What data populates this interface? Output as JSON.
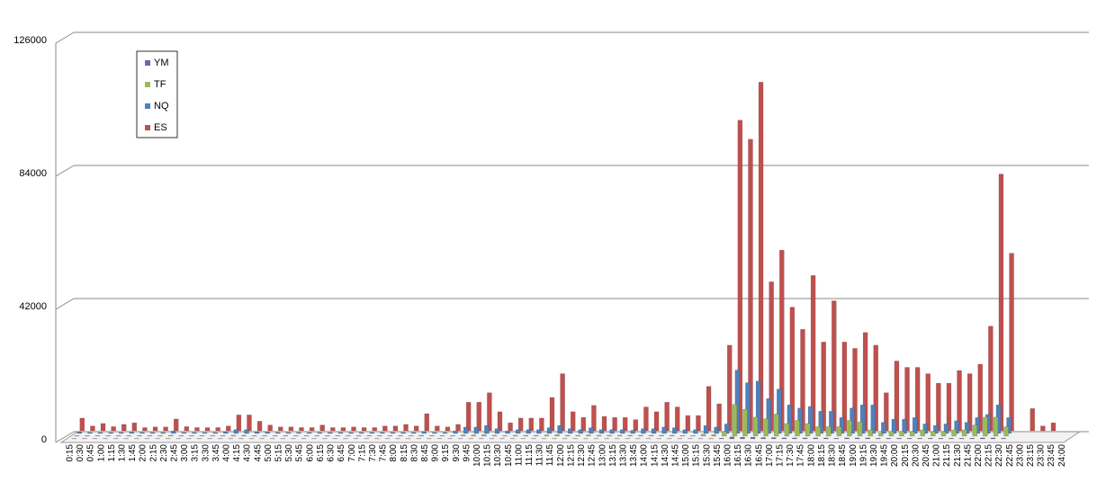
{
  "chart_data": {
    "type": "bar",
    "categories": [
      "0:15",
      "0:30",
      "0:45",
      "1:00",
      "1:15",
      "1:30",
      "1:45",
      "2:00",
      "2:15",
      "2:30",
      "2:45",
      "3:00",
      "3:15",
      "3:30",
      "3:45",
      "4:00",
      "4:15",
      "4:30",
      "4:45",
      "5:00",
      "5:15",
      "5:30",
      "5:45",
      "6:00",
      "6:15",
      "6:30",
      "6:45",
      "7:00",
      "7:15",
      "7:30",
      "7:45",
      "8:00",
      "8:15",
      "8:30",
      "8:45",
      "9:00",
      "9:15",
      "9:30",
      "9:45",
      "10:00",
      "10:15",
      "10:30",
      "10:45",
      "11:00",
      "11:15",
      "11:30",
      "11:45",
      "12:00",
      "12:15",
      "12:30",
      "12:45",
      "13:00",
      "13:15",
      "13:30",
      "13:45",
      "14:00",
      "14:15",
      "14:30",
      "14:45",
      "15:00",
      "15:15",
      "15:30",
      "15:45",
      "16:00",
      "16:15",
      "16:30",
      "16:45",
      "17:00",
      "17:15",
      "17:30",
      "17:45",
      "18:00",
      "18:15",
      "18:30",
      "18:45",
      "19:00",
      "19:15",
      "19:30",
      "19:45",
      "20:00",
      "20:15",
      "20:30",
      "20:45",
      "21:00",
      "21:15",
      "21:30",
      "21:45",
      "22:00",
      "22:15",
      "22:30",
      "22:45",
      "23:00",
      "23:15",
      "23:30",
      "23:45",
      "24:00"
    ],
    "series": [
      {
        "name": "YM",
        "color": "#7a5fa8",
        "values": [
          100,
          100,
          100,
          100,
          100,
          100,
          100,
          100,
          100,
          100,
          100,
          100,
          100,
          100,
          100,
          100,
          100,
          100,
          100,
          100,
          100,
          100,
          100,
          100,
          100,
          100,
          100,
          100,
          100,
          100,
          100,
          100,
          100,
          100,
          100,
          100,
          100,
          100,
          100,
          100,
          100,
          100,
          100,
          100,
          100,
          100,
          100,
          100,
          100,
          100,
          100,
          100,
          100,
          100,
          100,
          100,
          100,
          100,
          100,
          100,
          100,
          100,
          200,
          600,
          500,
          500,
          400,
          400,
          300,
          300,
          300,
          300,
          300,
          200,
          300,
          300,
          300,
          200,
          200,
          200,
          200,
          200,
          200,
          200,
          200,
          200,
          200,
          300,
          300,
          200,
          0,
          0,
          0,
          0,
          0,
          0
        ]
      },
      {
        "name": "TF",
        "color": "#9bbb59",
        "values": [
          200,
          200,
          200,
          200,
          200,
          200,
          200,
          200,
          200,
          300,
          200,
          200,
          200,
          200,
          200,
          300,
          300,
          200,
          200,
          200,
          200,
          200,
          200,
          200,
          200,
          200,
          200,
          200,
          200,
          200,
          200,
          200,
          200,
          300,
          200,
          200,
          200,
          400,
          400,
          500,
          300,
          200,
          300,
          300,
          300,
          400,
          500,
          300,
          300,
          400,
          300,
          300,
          300,
          300,
          300,
          300,
          300,
          300,
          200,
          200,
          600,
          500,
          1500,
          10000,
          8500,
          6000,
          5500,
          7000,
          4000,
          5000,
          4000,
          3000,
          3000,
          3000,
          5000,
          4500,
          2000,
          1000,
          1500,
          1500,
          1500,
          2000,
          1500,
          1500,
          2000,
          2000,
          3500,
          6000,
          6000,
          3000,
          0,
          0,
          0,
          0,
          0,
          0
        ]
      },
      {
        "name": "NQ",
        "color": "#4f81bd",
        "values": [
          500,
          300,
          300,
          300,
          300,
          400,
          300,
          300,
          300,
          800,
          300,
          300,
          300,
          300,
          500,
          1200,
          1200,
          500,
          400,
          300,
          300,
          300,
          300,
          300,
          300,
          300,
          300,
          300,
          300,
          300,
          300,
          300,
          300,
          600,
          300,
          300,
          800,
          2000,
          2000,
          2500,
          1500,
          800,
          1200,
          1200,
          1200,
          1800,
          2500,
          1500,
          1200,
          1800,
          1200,
          1200,
          1200,
          1000,
          1500,
          1500,
          2000,
          1800,
          1200,
          1200,
          2500,
          2000,
          3000,
          20000,
          16000,
          16500,
          11000,
          14000,
          9000,
          8000,
          8500,
          7000,
          7000,
          5000,
          8000,
          9000,
          9000,
          3500,
          4500,
          4500,
          5000,
          3000,
          2500,
          3000,
          4000,
          3500,
          5000,
          6000,
          9000,
          5000,
          0,
          0,
          0,
          0,
          0,
          0
        ]
      },
      {
        "name": "ES",
        "color": "#c0504d",
        "values": [
          4000,
          1500,
          2300,
          1300,
          2000,
          2500,
          1000,
          1200,
          1200,
          3700,
          1300,
          1000,
          1000,
          1000,
          1500,
          5000,
          5000,
          3000,
          1800,
          1200,
          1200,
          1000,
          1000,
          1800,
          1000,
          1000,
          1200,
          1000,
          1000,
          1500,
          1500,
          2000,
          1500,
          5400,
          1500,
          1200,
          2000,
          9000,
          9000,
          12000,
          6000,
          2500,
          4000,
          4000,
          4000,
          10500,
          18000,
          6000,
          4200,
          8000,
          4500,
          4200,
          4200,
          3500,
          7500,
          6000,
          9000,
          7500,
          4800,
          4800,
          14000,
          8500,
          27000,
          98000,
          92000,
          110000,
          47000,
          57000,
          39000,
          32000,
          49000,
          28000,
          41000,
          28000,
          26000,
          31000,
          27000,
          12000,
          22000,
          20000,
          20000,
          18000,
          15000,
          15000,
          19000,
          18000,
          21000,
          33000,
          81000,
          56000,
          0,
          7000,
          1500,
          2500,
          0,
          0
        ]
      }
    ],
    "ylim": [
      0,
      126000
    ],
    "yticks": [
      0,
      42000,
      84000,
      126000
    ],
    "grid": true
  }
}
